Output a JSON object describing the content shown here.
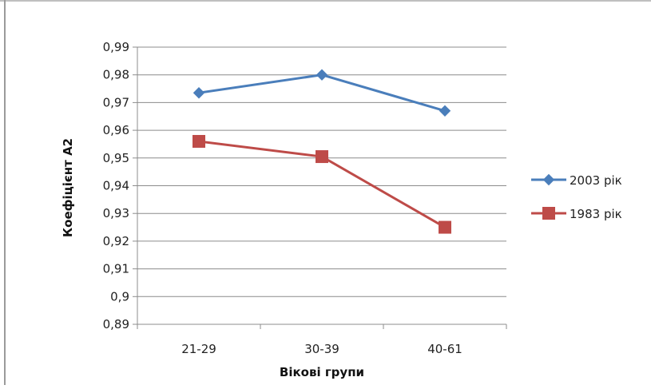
{
  "chart_data": {
    "type": "line",
    "title": "",
    "xlabel": "Вікові групи",
    "ylabel": "Коефіцієнт А2",
    "categories": [
      "21-29",
      "30-39",
      "40-61"
    ],
    "ylim": [
      0.89,
      0.99
    ],
    "yticks": [
      0.89,
      0.9,
      0.91,
      0.92,
      0.93,
      0.94,
      0.95,
      0.96,
      0.97,
      0.98,
      0.99
    ],
    "ytick_labels": [
      "0,89",
      "0,9",
      "0,91",
      "0,92",
      "0,93",
      "0,94",
      "0,95",
      "0,96",
      "0,97",
      "0,98",
      "0,99"
    ],
    "grid": true,
    "legend_position": "right",
    "series": [
      {
        "name": "2003 рік",
        "values": [
          0.9735,
          0.98,
          0.967
        ],
        "color": "#4a7ebb",
        "marker": "diamond"
      },
      {
        "name": "1983 рік",
        "values": [
          0.956,
          0.9505,
          0.925
        ],
        "color": "#be4b48",
        "marker": "square"
      }
    ]
  }
}
